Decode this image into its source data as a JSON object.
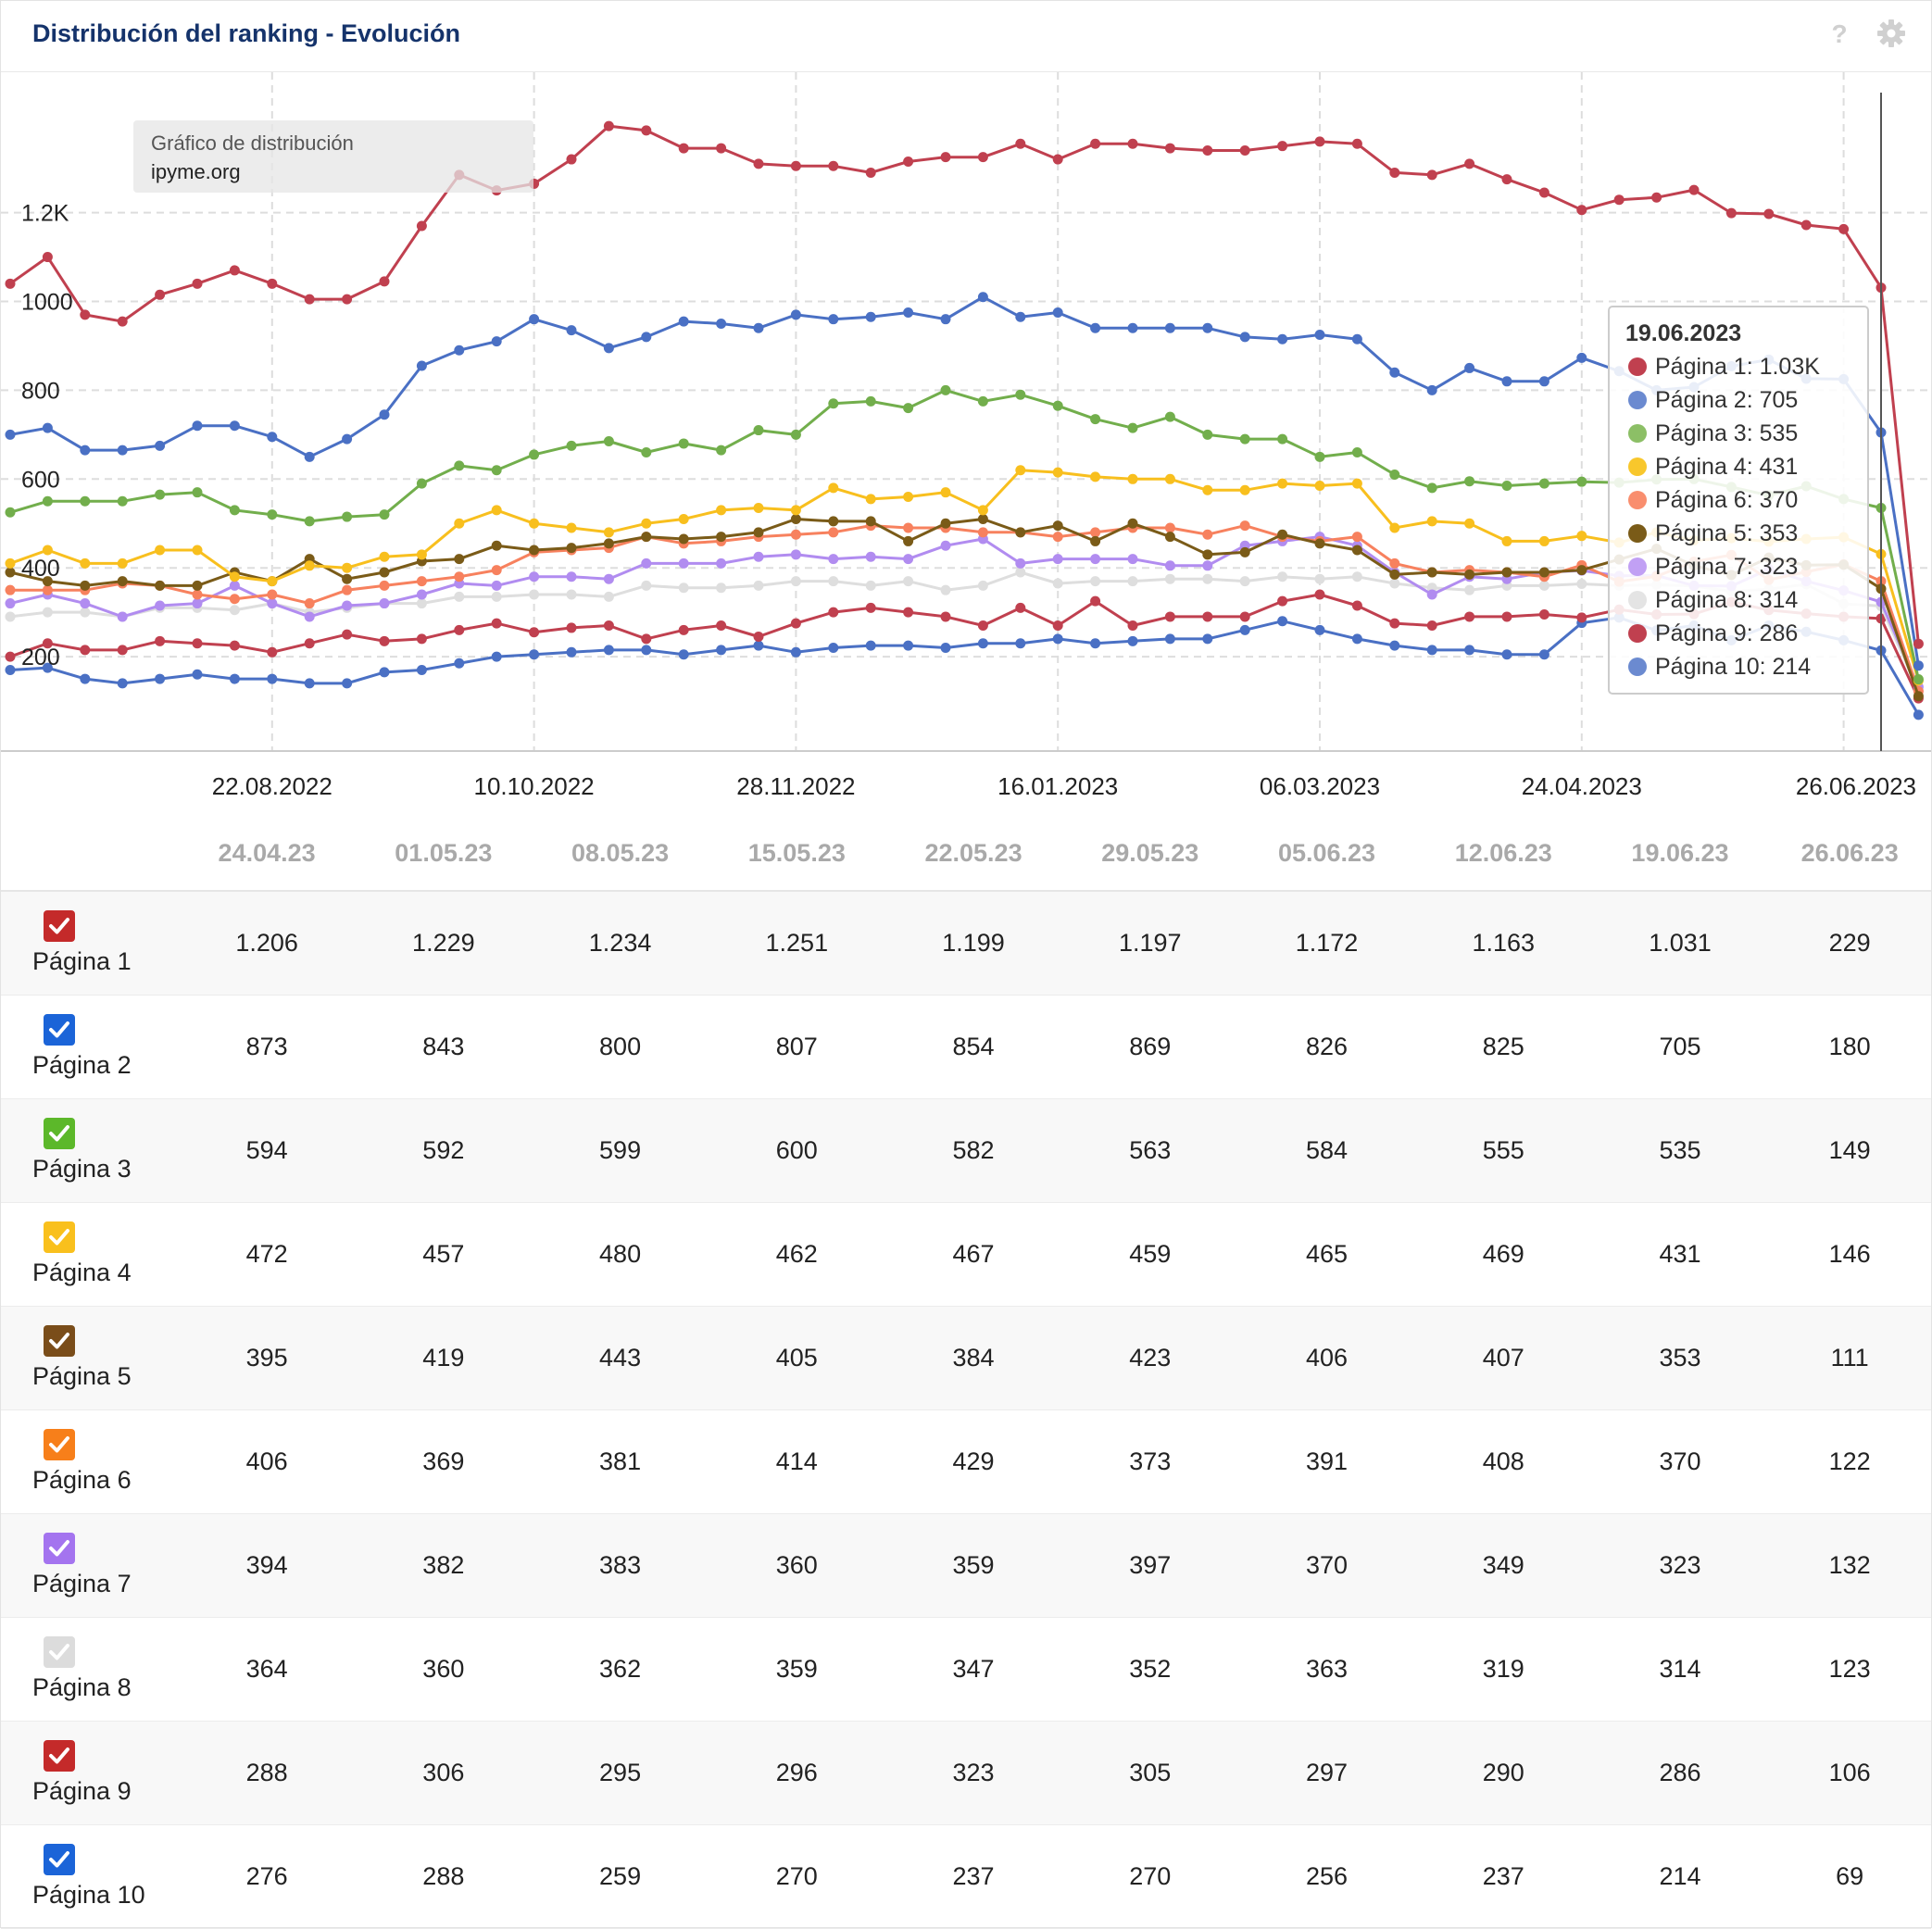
{
  "header": {
    "title": "Distribución del ranking - Evolución"
  },
  "chart_data": {
    "type": "line",
    "title": "Distribución del ranking - Evolución",
    "info_box": {
      "line1": "Gráfico de distribución",
      "line2": "ipyme.org"
    },
    "y_ticks": [
      "200",
      "400",
      "600",
      "800",
      "1000",
      "1.2K"
    ],
    "y_tick_values": [
      200,
      400,
      600,
      800,
      1000,
      1200
    ],
    "ylim": [
      0,
      1420
    ],
    "x_tick_labels": [
      "22.08.2022",
      "10.10.2022",
      "28.11.2022",
      "16.01.2023",
      "06.03.2023",
      "24.04.2023",
      "26.06.2023"
    ],
    "x_tick_index": [
      7,
      14,
      21,
      28,
      35,
      42,
      49
    ],
    "series": [
      {
        "name": "Página 1",
        "color": "#c0404f",
        "values": [
          1040,
          1100,
          970,
          955,
          1015,
          1040,
          1070,
          1040,
          1005,
          1005,
          1045,
          1170,
          1285,
          1250,
          1265,
          1320,
          1395,
          1385,
          1345,
          1345,
          1310,
          1305,
          1305,
          1290,
          1315,
          1325,
          1325,
          1355,
          1320,
          1355,
          1355,
          1345,
          1340,
          1340,
          1350,
          1360,
          1355,
          1290,
          1285,
          1310,
          1275,
          1245,
          1206,
          1229,
          1234,
          1251,
          1199,
          1197,
          1172,
          1163,
          1031,
          229
        ]
      },
      {
        "name": "Página 2",
        "color": "#4a70c4",
        "values": [
          700,
          715,
          665,
          665,
          675,
          720,
          720,
          695,
          650,
          690,
          745,
          855,
          890,
          910,
          960,
          935,
          895,
          920,
          955,
          950,
          940,
          970,
          960,
          965,
          975,
          960,
          1010,
          965,
          975,
          940,
          940,
          940,
          940,
          920,
          915,
          925,
          915,
          840,
          800,
          850,
          820,
          820,
          873,
          843,
          800,
          807,
          854,
          869,
          826,
          825,
          705,
          180
        ]
      },
      {
        "name": "Página 3",
        "color": "#72ae4c",
        "values": [
          525,
          550,
          550,
          550,
          565,
          570,
          530,
          520,
          505,
          515,
          520,
          590,
          630,
          620,
          655,
          675,
          685,
          660,
          680,
          665,
          710,
          700,
          770,
          775,
          760,
          800,
          775,
          790,
          765,
          735,
          715,
          740,
          700,
          690,
          690,
          650,
          660,
          610,
          580,
          595,
          585,
          590,
          594,
          592,
          599,
          600,
          582,
          563,
          584,
          555,
          535,
          149
        ]
      },
      {
        "name": "Página 4",
        "color": "#f8bf1e",
        "values": [
          410,
          440,
          410,
          410,
          440,
          440,
          380,
          370,
          405,
          400,
          425,
          430,
          500,
          530,
          500,
          490,
          480,
          500,
          510,
          530,
          535,
          530,
          580,
          555,
          560,
          570,
          530,
          620,
          615,
          605,
          600,
          600,
          575,
          575,
          590,
          585,
          590,
          490,
          505,
          500,
          460,
          460,
          472,
          457,
          480,
          462,
          467,
          459,
          465,
          469,
          431,
          146
        ]
      },
      {
        "name": "Página 5",
        "color": "#7a5b18",
        "values": [
          390,
          370,
          360,
          370,
          360,
          360,
          390,
          370,
          420,
          375,
          390,
          415,
          420,
          450,
          440,
          445,
          455,
          470,
          465,
          470,
          480,
          510,
          505,
          505,
          460,
          500,
          510,
          480,
          495,
          460,
          500,
          470,
          430,
          435,
          475,
          455,
          440,
          385,
          390,
          385,
          390,
          390,
          395,
          419,
          443,
          405,
          384,
          423,
          406,
          407,
          353,
          111
        ]
      },
      {
        "name": "Página 6",
        "color": "#f7815e",
        "values": [
          350,
          350,
          350,
          365,
          360,
          340,
          330,
          340,
          320,
          350,
          360,
          370,
          380,
          395,
          435,
          440,
          445,
          470,
          455,
          460,
          470,
          475,
          480,
          495,
          490,
          490,
          480,
          480,
          470,
          480,
          490,
          490,
          475,
          495,
          470,
          460,
          470,
          410,
          390,
          395,
          390,
          380,
          406,
          369,
          381,
          414,
          429,
          373,
          391,
          408,
          370,
          122
        ]
      },
      {
        "name": "Página 7",
        "color": "#b18cf0",
        "values": [
          320,
          340,
          320,
          290,
          315,
          320,
          360,
          320,
          290,
          315,
          320,
          340,
          365,
          360,
          380,
          380,
          375,
          410,
          410,
          410,
          425,
          430,
          420,
          425,
          420,
          450,
          465,
          410,
          420,
          420,
          420,
          405,
          405,
          450,
          460,
          470,
          450,
          390,
          340,
          380,
          375,
          390,
          394,
          382,
          383,
          360,
          359,
          397,
          370,
          349,
          323,
          132
        ]
      },
      {
        "name": "Página 8",
        "color": "#dedede",
        "values": [
          290,
          300,
          300,
          290,
          310,
          310,
          305,
          320,
          300,
          310,
          320,
          320,
          335,
          335,
          340,
          340,
          335,
          360,
          355,
          355,
          360,
          370,
          370,
          360,
          370,
          350,
          360,
          390,
          365,
          370,
          370,
          375,
          375,
          370,
          380,
          375,
          380,
          365,
          355,
          350,
          360,
          360,
          364,
          360,
          362,
          359,
          347,
          352,
          363,
          319,
          314,
          123
        ]
      },
      {
        "name": "Página 9",
        "color": "#c0404f",
        "values": [
          200,
          230,
          215,
          215,
          235,
          230,
          225,
          210,
          230,
          250,
          235,
          240,
          260,
          275,
          255,
          265,
          270,
          240,
          260,
          270,
          245,
          275,
          300,
          310,
          300,
          290,
          270,
          310,
          270,
          325,
          270,
          290,
          290,
          290,
          325,
          340,
          315,
          275,
          270,
          290,
          290,
          295,
          288,
          306,
          295,
          296,
          323,
          305,
          297,
          290,
          286,
          106
        ]
      },
      {
        "name": "Página 10",
        "color": "#4a70c4",
        "values": [
          170,
          175,
          150,
          140,
          150,
          160,
          150,
          150,
          140,
          140,
          165,
          170,
          185,
          200,
          205,
          210,
          215,
          215,
          205,
          215,
          225,
          210,
          220,
          225,
          225,
          220,
          230,
          230,
          240,
          230,
          235,
          240,
          240,
          260,
          280,
          260,
          240,
          225,
          215,
          215,
          205,
          205,
          276,
          288,
          259,
          270,
          237,
          270,
          256,
          237,
          214,
          69
        ]
      }
    ]
  },
  "tooltip": {
    "date": "19.06.2023",
    "entries": [
      {
        "text": "Página 1: 1.03K",
        "color": "#c0404f"
      },
      {
        "text": "Página 2: 705",
        "color": "#6b8ad0"
      },
      {
        "text": "Página 3: 535",
        "color": "#8cbf66"
      },
      {
        "text": "Página 4: 431",
        "color": "#f8c72c"
      },
      {
        "text": "Página 6: 370",
        "color": "#f98e6e"
      },
      {
        "text": "Página 5: 353",
        "color": "#7a5b18"
      },
      {
        "text": "Página 7: 323",
        "color": "#c1a0f4"
      },
      {
        "text": "Página 8: 314",
        "color": "#e4e4e4"
      },
      {
        "text": "Página 9: 286",
        "color": "#c0404f"
      },
      {
        "text": "Página 10: 214",
        "color": "#6b8ad0"
      }
    ]
  },
  "table": {
    "columns": [
      "24.04.23",
      "01.05.23",
      "08.05.23",
      "15.05.23",
      "22.05.23",
      "29.05.23",
      "05.06.23",
      "12.06.23",
      "19.06.23",
      "26.06.23"
    ],
    "rows": [
      {
        "label": "Página 1",
        "color": "#c42a2a",
        "checked": true,
        "values": [
          "1.206",
          "1.229",
          "1.234",
          "1.251",
          "1.199",
          "1.197",
          "1.172",
          "1.163",
          "1.031",
          "229"
        ]
      },
      {
        "label": "Página 2",
        "color": "#1b64d8",
        "checked": true,
        "values": [
          "873",
          "843",
          "800",
          "807",
          "854",
          "869",
          "826",
          "825",
          "705",
          "180"
        ]
      },
      {
        "label": "Página 3",
        "color": "#5cb82a",
        "checked": true,
        "values": [
          "594",
          "592",
          "599",
          "600",
          "582",
          "563",
          "584",
          "555",
          "535",
          "149"
        ]
      },
      {
        "label": "Página 4",
        "color": "#f9c01d",
        "checked": true,
        "values": [
          "472",
          "457",
          "480",
          "462",
          "467",
          "459",
          "465",
          "469",
          "431",
          "146"
        ]
      },
      {
        "label": "Página 5",
        "color": "#7a4d1a",
        "checked": true,
        "values": [
          "395",
          "419",
          "443",
          "405",
          "384",
          "423",
          "406",
          "407",
          "353",
          "111"
        ]
      },
      {
        "label": "Página 6",
        "color": "#f77f1a",
        "checked": true,
        "values": [
          "406",
          "369",
          "381",
          "414",
          "429",
          "373",
          "391",
          "408",
          "370",
          "122"
        ]
      },
      {
        "label": "Página 7",
        "color": "#a474ef",
        "checked": true,
        "values": [
          "394",
          "382",
          "383",
          "360",
          "359",
          "397",
          "370",
          "349",
          "323",
          "132"
        ]
      },
      {
        "label": "Página 8",
        "color": "#dcdcdc",
        "checked": true,
        "values": [
          "364",
          "360",
          "362",
          "359",
          "347",
          "352",
          "363",
          "319",
          "314",
          "123"
        ]
      },
      {
        "label": "Página 9",
        "color": "#c42a2a",
        "checked": true,
        "values": [
          "288",
          "306",
          "295",
          "296",
          "323",
          "305",
          "297",
          "290",
          "286",
          "106"
        ]
      },
      {
        "label": "Página 10",
        "color": "#1b64d8",
        "checked": true,
        "values": [
          "276",
          "288",
          "259",
          "270",
          "237",
          "270",
          "256",
          "237",
          "214",
          "69"
        ]
      }
    ]
  }
}
